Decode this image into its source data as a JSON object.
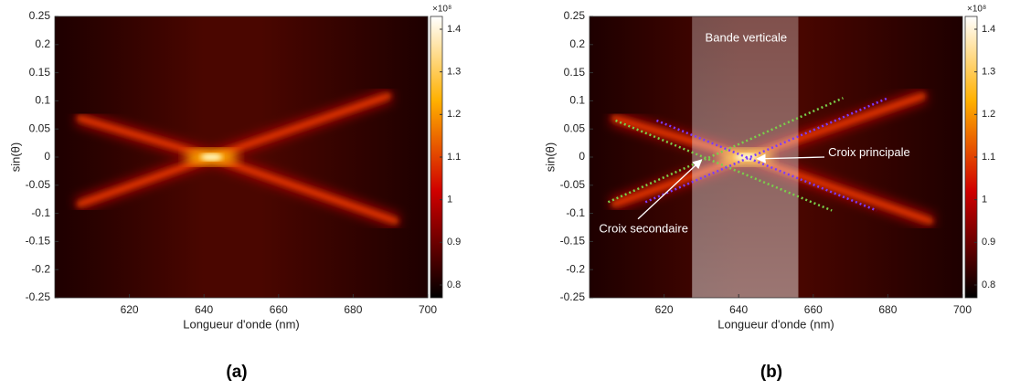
{
  "chart_data": [
    {
      "type": "heatmap",
      "caption": "(a)",
      "xlabel": "Longueur d'onde (nm)",
      "ylabel": "sin(θ)",
      "xlim": [
        600,
        700
      ],
      "xticks": [
        620,
        640,
        660,
        680,
        700
      ],
      "ylim": [
        -0.25,
        0.25
      ],
      "yticks": [
        -0.25,
        -0.2,
        -0.15,
        -0.1,
        -0.05,
        0,
        0.05,
        0.1,
        0.15,
        0.2,
        0.25
      ],
      "colormap": "hot",
      "clim": [
        0.77,
        1.43
      ],
      "cticks": [
        0.8,
        0.9,
        1,
        1.1,
        1.2,
        1.3,
        1.4
      ],
      "cscale": "×10⁸"
    },
    {
      "type": "heatmap",
      "caption": "(b)",
      "xlabel": "Longueur d'onde (nm)",
      "ylabel": "sin(θ)",
      "xlim": [
        600,
        700
      ],
      "xticks": [
        620,
        640,
        660,
        680,
        700
      ],
      "ylim": [
        -0.25,
        0.25
      ],
      "yticks": [
        -0.25,
        -0.2,
        -0.15,
        -0.1,
        -0.05,
        0,
        0.05,
        0.1,
        0.15,
        0.2,
        0.25
      ],
      "colormap": "hot",
      "clim": [
        0.77,
        1.43
      ],
      "cticks": [
        0.8,
        0.9,
        1,
        1.1,
        1.2,
        1.3,
        1.4
      ],
      "cscale": "×10⁸",
      "annotations": [
        "Bande verticale",
        "Croix principale",
        "Croix secondaire"
      ]
    }
  ]
}
